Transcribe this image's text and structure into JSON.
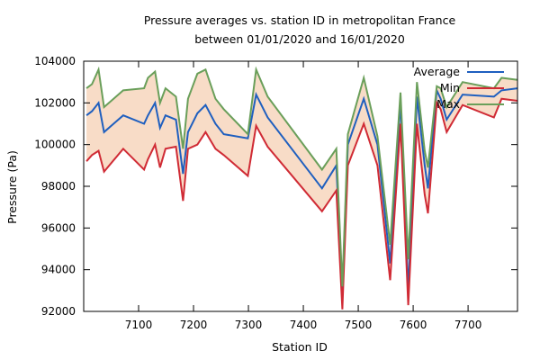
{
  "chart_data": {
    "type": "line",
    "title": "Pressure averages vs. station ID in metropolitan France",
    "subtitle": "between 01/01/2020 and 16/01/2020",
    "xlabel": "Station ID",
    "ylabel": "Pressure (Pa)",
    "xlim": [
      7000,
      7790
    ],
    "ylim": [
      92000,
      104000
    ],
    "x_ticks": [
      7100,
      7200,
      7300,
      7400,
      7500,
      7600,
      7700
    ],
    "y_ticks": [
      92000,
      94000,
      96000,
      98000,
      100000,
      102000,
      104000
    ],
    "x_tick_labels": [
      "7100",
      "7200",
      "7300",
      "7400",
      "7500",
      "7600",
      "7700"
    ],
    "y_tick_labels": [
      "92000",
      "94000",
      "96000",
      "98000",
      "100000",
      "102000",
      "104000"
    ],
    "legend_position": "top-right",
    "grid": false,
    "x": [
      7005,
      7015,
      7027,
      7037,
      7072,
      7110,
      7117,
      7130,
      7139,
      7149,
      7168,
      7181,
      7190,
      7207,
      7222,
      7240,
      7255,
      7299,
      7314,
      7335,
      7434,
      7460,
      7471,
      7481,
      7510,
      7535,
      7558,
      7577,
      7591,
      7607,
      7621,
      7627,
      7643,
      7650,
      7661,
      7690,
      7747,
      7761,
      7790
    ],
    "series": [
      {
        "name": "Average",
        "color": "#1f5fbf",
        "values": [
          101400,
          101600,
          102000,
          100600,
          101400,
          101000,
          101400,
          102000,
          100800,
          101400,
          101200,
          98600,
          100600,
          101500,
          101900,
          101000,
          100500,
          100300,
          102400,
          101300,
          97900,
          99000,
          92900,
          100000,
          102200,
          100000,
          94300,
          102100,
          93000,
          102300,
          99000,
          97900,
          102600,
          102200,
          101200,
          102400,
          102300,
          102600,
          102700
        ]
      },
      {
        "name": "Min",
        "color": "#d02b35",
        "values": [
          99200,
          99500,
          99700,
          98700,
          99800,
          98800,
          99300,
          100000,
          98900,
          99800,
          99900,
          97300,
          99800,
          100000,
          100600,
          99800,
          99500,
          98500,
          100900,
          99900,
          96800,
          97800,
          92100,
          99000,
          101000,
          99000,
          93500,
          101000,
          92300,
          101000,
          97600,
          96700,
          102000,
          101700,
          100600,
          101900,
          101300,
          102200,
          102100
        ]
      },
      {
        "name": "Max",
        "color": "#6a9f5a",
        "values": [
          102700,
          102900,
          103600,
          101800,
          102600,
          102700,
          103200,
          103500,
          102000,
          102700,
          102300,
          99800,
          102200,
          103400,
          103600,
          102200,
          101700,
          100500,
          103600,
          102300,
          98800,
          99800,
          93200,
          100500,
          103200,
          100400,
          95200,
          102500,
          94500,
          103000,
          99700,
          98900,
          102800,
          102700,
          101800,
          103000,
          102700,
          103200,
          103100
        ]
      }
    ],
    "band_fill_color": "#f8dcc7"
  }
}
